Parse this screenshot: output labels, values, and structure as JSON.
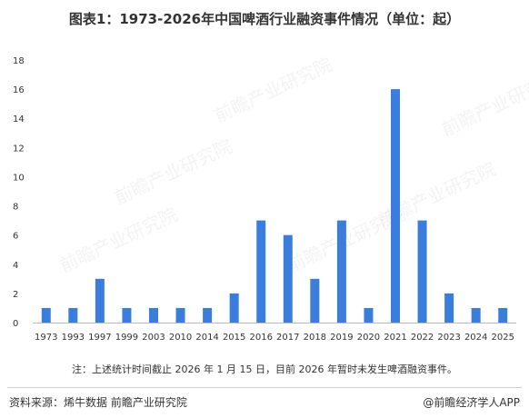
{
  "header": {
    "title": "图表1：1973-2026年中国啤酒行业融资事件情况（单位：起）"
  },
  "note": "注：上述统计时间截止 2026 年 1 月 15 日，目前 2026 年暂时未发生啤酒融资事件。",
  "footer": {
    "source": "资料来源：烯牛数据 前瞻产业研究院",
    "brand": "@前瞻经济学人APP"
  },
  "watermark": {
    "text": "前瞻产业研究院"
  },
  "colors": {
    "bar": "#3b7ddd",
    "axis": "#bbbbbb",
    "text": "#333333"
  },
  "chart_data": {
    "type": "bar",
    "categories": [
      "1973",
      "1993",
      "1997",
      "1999",
      "2003",
      "2010",
      "2014",
      "2015",
      "2016",
      "2017",
      "2018",
      "2019",
      "2020",
      "2021",
      "2022",
      "2023",
      "2024",
      "2025"
    ],
    "values": [
      1,
      1,
      3,
      1,
      1,
      1,
      1,
      2,
      7,
      6,
      3,
      7,
      1,
      16,
      7,
      2,
      1,
      1
    ],
    "title": "图表1：1973-2026年中国啤酒行业融资事件情况（单位：起）",
    "xlabel": "",
    "ylabel": "",
    "ylim": [
      0,
      18
    ],
    "yticks": [
      0,
      2,
      4,
      6,
      8,
      10,
      12,
      14,
      16,
      18
    ],
    "grid": false,
    "legend": "none"
  }
}
